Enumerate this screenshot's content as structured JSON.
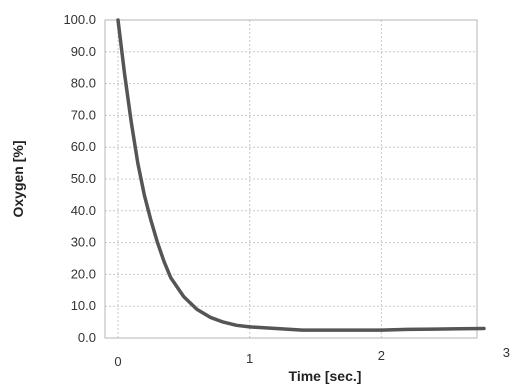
{
  "chart_data": {
    "type": "line",
    "title": "",
    "xlabel": "Time [sec.]",
    "ylabel": "Oxygen [%]",
    "xlim": [
      0,
      3
    ],
    "ylim": [
      0,
      100
    ],
    "x_ticks": [
      "0",
      "1",
      "2",
      "3"
    ],
    "y_ticks": [
      "0.0",
      "10.0",
      "20.0",
      "30.0",
      "40.0",
      "50.0",
      "60.0",
      "70.0",
      "80.0",
      "90.0",
      "100.0"
    ],
    "grid": true,
    "legend": "none",
    "line_color": "#555555",
    "series": [
      {
        "x": [
          0,
          0.05,
          0.1,
          0.15,
          0.2,
          0.25,
          0.3,
          0.35,
          0.4,
          0.5,
          0.6,
          0.7,
          0.8,
          0.9,
          1.0,
          1.2,
          1.4,
          1.6,
          1.8,
          2.0,
          2.2,
          2.4,
          2.6,
          2.78
        ],
        "values": [
          100,
          83,
          68,
          55,
          45,
          37,
          30,
          24,
          19,
          13,
          9,
          6.5,
          5,
          4,
          3.5,
          3,
          2.5,
          2.5,
          2.5,
          2.5,
          2.7,
          2.8,
          2.9,
          3.0
        ]
      }
    ]
  }
}
